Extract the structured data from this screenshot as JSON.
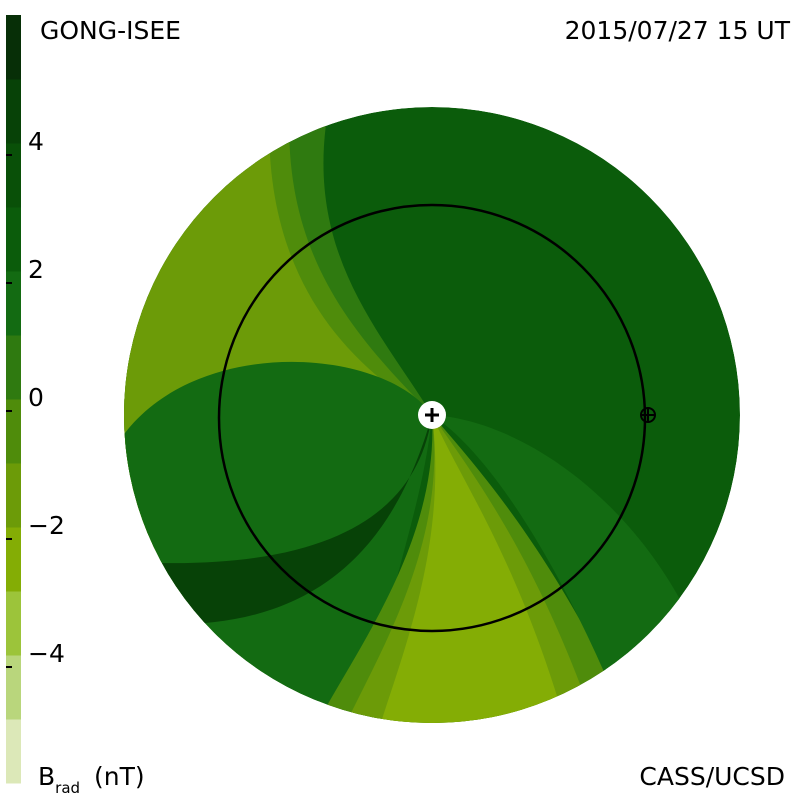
{
  "header": {
    "left": "GONG-ISEE",
    "right": "2015/07/27 15 UT"
  },
  "footer": {
    "quantity": "B",
    "quantity_sub": "rad",
    "unit": "(nT)",
    "right": "CASS/UCSD"
  },
  "colorbar": {
    "range": [
      -6,
      6
    ],
    "ticks": [
      {
        "value": 4,
        "label": "4"
      },
      {
        "value": 2,
        "label": "2"
      },
      {
        "value": 0,
        "label": "0"
      },
      {
        "value": -2,
        "label": "−2"
      },
      {
        "value": -4,
        "label": "−4"
      }
    ],
    "colors": [
      "#dce8b8",
      "#b9d67c",
      "#9cc43a",
      "#84ad05",
      "#6c9b08",
      "#4f8c0b",
      "#2f7a10",
      "#136b12",
      "#0b5c0b",
      "#095008",
      "#074207",
      "#072f07"
    ]
  }
}
